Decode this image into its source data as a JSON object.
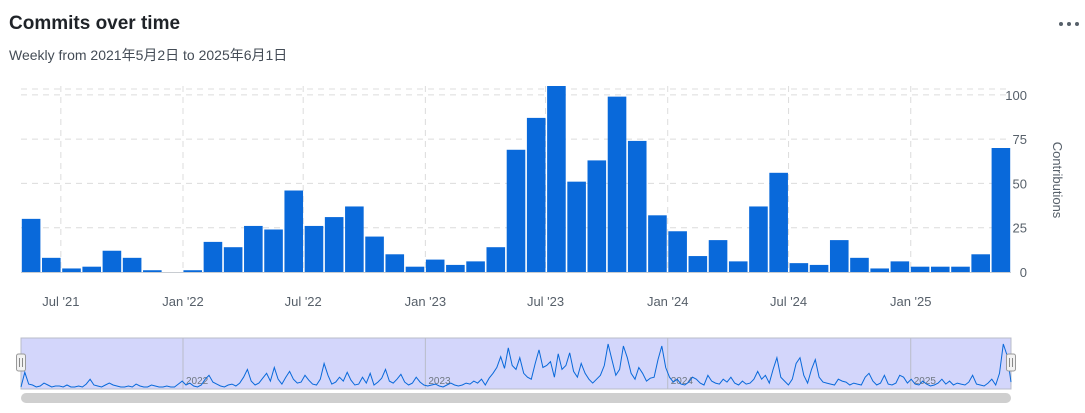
{
  "header": {
    "title": "Commits over time",
    "subtitle": "Weekly from 2021年5月2日 to 2025年6月1日",
    "menu_icon": "more-horizontal-icon"
  },
  "colors": {
    "bar": "#0969da",
    "navigator_fill": "#d3d6fb",
    "navigator_line": "#0969da",
    "grid": "#dcdcdc"
  },
  "chart_data": {
    "type": "bar",
    "title": "Commits over time",
    "subtitle": "Weekly from 2021年5月2日 to 2025年6月1日",
    "ylabel": "Contributions",
    "ylim": [
      0,
      105
    ],
    "yticks": [
      0,
      25,
      50,
      75,
      100
    ],
    "yaxis_position": "right",
    "grid": true,
    "x_range": [
      "2021-05-02",
      "2025-06-01"
    ],
    "x_ticks": [
      {
        "date": "2021-07-01",
        "label": "Jul '21"
      },
      {
        "date": "2022-01-01",
        "label": "Jan '22"
      },
      {
        "date": "2022-07-01",
        "label": "Jul '22"
      },
      {
        "date": "2023-01-01",
        "label": "Jan '23"
      },
      {
        "date": "2023-07-01",
        "label": "Jul '23"
      },
      {
        "date": "2024-01-01",
        "label": "Jan '24"
      },
      {
        "date": "2024-07-01",
        "label": "Jul '24"
      },
      {
        "date": "2025-01-01",
        "label": "Jan '25"
      }
    ],
    "values": [
      30,
      8,
      2,
      3,
      12,
      8,
      1,
      0,
      1,
      17,
      14,
      26,
      24,
      46,
      26,
      31,
      37,
      20,
      10,
      3,
      7,
      4,
      6,
      14,
      69,
      87,
      105,
      51,
      63,
      99,
      74,
      32,
      23,
      9,
      18,
      6,
      37,
      56,
      5,
      4,
      18,
      8,
      2,
      6,
      3,
      3,
      3,
      10,
      70
    ],
    "series": [
      {
        "name": "",
        "values": [
          30,
          8,
          2,
          3,
          12,
          8,
          1,
          0,
          1,
          17,
          14,
          26,
          24,
          46,
          26,
          31,
          37,
          20,
          10,
          3,
          7,
          4,
          6,
          14,
          69,
          87,
          105,
          51,
          63,
          99,
          74,
          32,
          23,
          9,
          18,
          6,
          37,
          56,
          5,
          4,
          18,
          8,
          2,
          6,
          3,
          3,
          3,
          10,
          70
        ]
      }
    ],
    "navigator": {
      "years": [
        "2022",
        "2023",
        "2024",
        "2025"
      ],
      "weekly_values": [
        0,
        15,
        3,
        2,
        0,
        1,
        4,
        2,
        0,
        1,
        1,
        0,
        2,
        0,
        0,
        1,
        0,
        3,
        8,
        2,
        1,
        0,
        2,
        4,
        2,
        1,
        0,
        0,
        1,
        0,
        3,
        1,
        0,
        0,
        2,
        1,
        0,
        0,
        1,
        0,
        0,
        3,
        6,
        2,
        4,
        1,
        0,
        2,
        8,
        12,
        5,
        3,
        1,
        0,
        2,
        3,
        1,
        4,
        10,
        18,
        6,
        2,
        4,
        9,
        14,
        6,
        20,
        8,
        3,
        10,
        16,
        8,
        4,
        5,
        12,
        7,
        3,
        2,
        8,
        24,
        12,
        3,
        5,
        10,
        6,
        15,
        7,
        2,
        3,
        10,
        4,
        14,
        2,
        5,
        9,
        18,
        6,
        4,
        8,
        13,
        5,
        2,
        4,
        10,
        5,
        2,
        1,
        2,
        3,
        1,
        0,
        2,
        4,
        2,
        1,
        2,
        4,
        3,
        6,
        4,
        8,
        2,
        9,
        14,
        20,
        31,
        19,
        40,
        22,
        18,
        30,
        14,
        10,
        8,
        24,
        38,
        20,
        22,
        26,
        10,
        34,
        18,
        22,
        35,
        16,
        10,
        24,
        14,
        8,
        4,
        8,
        12,
        22,
        44,
        28,
        12,
        18,
        42,
        30,
        14,
        8,
        20,
        14,
        6,
        9,
        10,
        28,
        42,
        20,
        10,
        5,
        8,
        3,
        2,
        5,
        10,
        8,
        4,
        2,
        12,
        6,
        4,
        3,
        8,
        5,
        10,
        4,
        2,
        6,
        3,
        4,
        8,
        16,
        8,
        12,
        4,
        18,
        30,
        10,
        6,
        2,
        8,
        24,
        30,
        12,
        4,
        18,
        28,
        10,
        5,
        4,
        3,
        2,
        8,
        6,
        5,
        2,
        4,
        3,
        2,
        10,
        14,
        6,
        2,
        4,
        12,
        3,
        2,
        4,
        12,
        10,
        4,
        8,
        3,
        2,
        6,
        3,
        1,
        2,
        4,
        8,
        3,
        6,
        2,
        4,
        3,
        2,
        5,
        12,
        3,
        2,
        1,
        4,
        8,
        2,
        14,
        44,
        32,
        5
      ]
    }
  }
}
